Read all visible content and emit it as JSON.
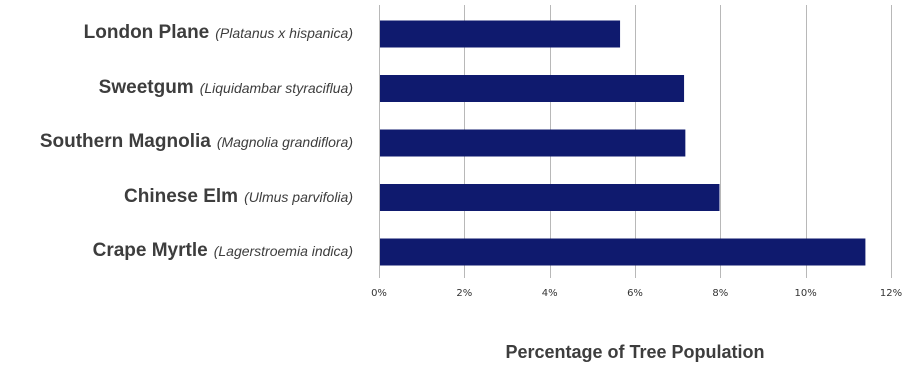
{
  "chart_data": {
    "type": "bar",
    "orientation": "horizontal",
    "categories": [
      {
        "common": "London Plane",
        "scientific": "(Platanus x hispanica)"
      },
      {
        "common": "Sweetgum",
        "scientific": "(Liquidambar styraciflua)"
      },
      {
        "common": "Southern Magnolia",
        "scientific": "(Magnolia grandiflora)"
      },
      {
        "common": "Chinese Elm",
        "scientific": "(Ulmus parvifolia)"
      },
      {
        "common": "Crape Myrtle",
        "scientific": "(Lagerstroemia indica)"
      }
    ],
    "values": [
      5.65,
      7.15,
      7.18,
      7.98,
      11.4
    ],
    "xlabel": "Percentage of Tree Population",
    "xlim": [
      0,
      12
    ],
    "xticks": [
      "0%",
      "2%",
      "4%",
      "6%",
      "8%",
      "10%",
      "12%"
    ],
    "grid": "vertical",
    "bar_color": "#0f1a6e",
    "grid_color": "#b8b8b8"
  }
}
